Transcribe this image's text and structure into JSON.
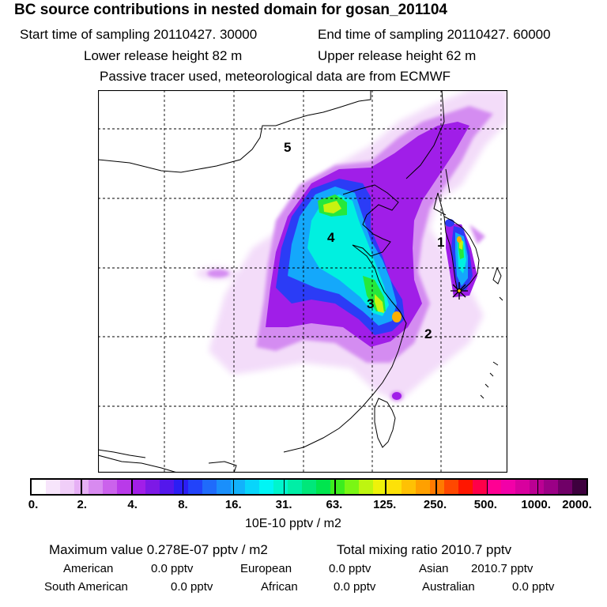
{
  "header": {
    "title": "BC  source contributions in nested domain for gosan_201104",
    "start_time": "Start time of sampling 20110427. 30000",
    "end_time": "End time of sampling 20110427. 60000",
    "lower_release": "Lower release height   82 m",
    "upper_release": "Upper release height   62 m",
    "tracer_note": "Passive tracer used, meteorological data are from ECMWF"
  },
  "map": {
    "region_labels": [
      "1",
      "2",
      "3",
      "4",
      "5"
    ],
    "receptor_icon": "star-marker-icon"
  },
  "colorbar": {
    "colors": [
      "#ffffff",
      "#f7e5fb",
      "#f0cef8",
      "#e6b0f5",
      "#d88af0",
      "#cb62ec",
      "#b93ae9",
      "#a21ee8",
      "#7d19e6",
      "#5417ec",
      "#2b1ef4",
      "#2243fa",
      "#1f6bfb",
      "#1a8ffb",
      "#12b2fb",
      "#08d5fb",
      "#00f5f5",
      "#00f5cd",
      "#00eea6",
      "#00e77a",
      "#00e54e",
      "#3ced1e",
      "#7af614",
      "#bef510",
      "#eef20a",
      "#fde108",
      "#ffc104",
      "#ffa000",
      "#ff7a00",
      "#ff4800",
      "#ff1600",
      "#ff0049",
      "#ff0093",
      "#f200a8",
      "#d8009e",
      "#bb0093",
      "#9b0086",
      "#700067",
      "#3e003e"
    ],
    "tick_labels": [
      "0.",
      "2.",
      "4.",
      "8.",
      "16.",
      "31.",
      "63.",
      "125.",
      "250.",
      "500.",
      "1000.",
      "2000."
    ],
    "units": "10E-10 pptv / m2"
  },
  "stats": {
    "maximum": "Maximum value  0.278E-07 pptv / m2",
    "total": "Total mixing ratio     2010.7 pptv",
    "american_label": "American",
    "american_value": "0.0 pptv",
    "european_label": "European",
    "european_value": "0.0 pptv",
    "asian_label": "Asian",
    "asian_value": "2010.7 pptv",
    "south_american_label": "South American",
    "south_american_value": "0.0 pptv",
    "african_label": "African",
    "african_value": "0.0 pptv",
    "australian_label": "Australian",
    "australian_value": "0.0 pptv"
  }
}
